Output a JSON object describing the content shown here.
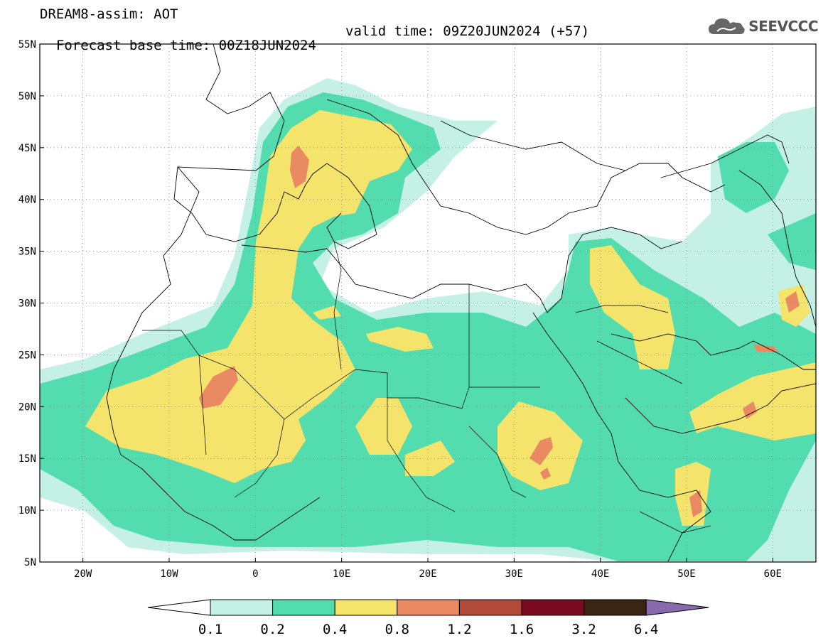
{
  "header": {
    "line1": "DREAM8-assim: AOT",
    "line2_left": "Forecast base time: 00Z18JUN2024",
    "line2_right": "valid time: 09Z20JUN2024 (+57)"
  },
  "logo": {
    "text": "SEEVCCC",
    "icon": "cloud-icon"
  },
  "map": {
    "lon_range": [
      -25,
      65
    ],
    "lat_range": [
      5,
      55
    ],
    "lat_labels": [
      "55N",
      "50N",
      "45N",
      "40N",
      "35N",
      "30N",
      "25N",
      "20N",
      "15N",
      "10N",
      "5N"
    ],
    "lon_labels": [
      "20W",
      "10W",
      "0",
      "10E",
      "20E",
      "30E",
      "40E",
      "50E",
      "60E"
    ],
    "grid": true
  },
  "colorbar": {
    "labels": [
      "0.1",
      "0.2",
      "0.4",
      "0.8",
      "1.2",
      "1.6",
      "3.2",
      "6.4"
    ],
    "colors": [
      "#c4f0e6",
      "#53dcae",
      "#f5e46c",
      "#ea8a63",
      "#b24a3a",
      "#7a0a22",
      "#3a2414",
      "#8a6aaf"
    ]
  }
}
